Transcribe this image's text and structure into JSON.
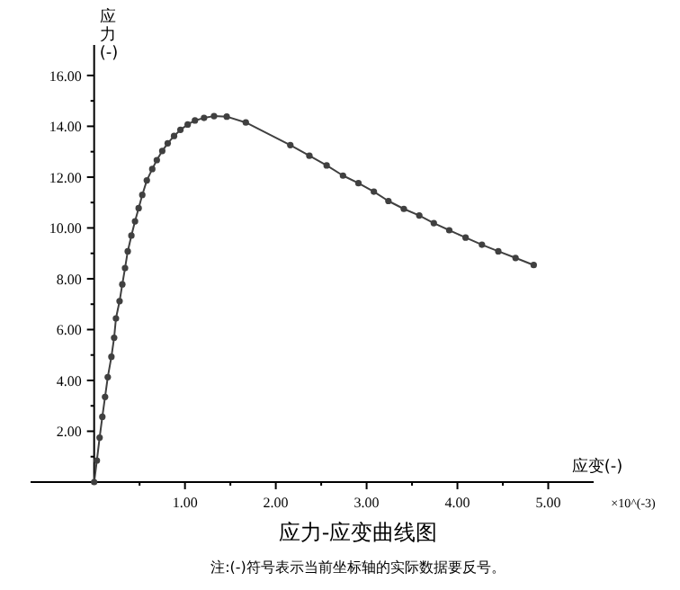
{
  "chart_data": {
    "type": "line",
    "title": "应力-应变曲线图",
    "xlabel": "应变(-)",
    "ylabel": "应力(-)",
    "annotations": [
      "×10^(-3)",
      "注:(-)符号表示当前坐标轴的实际数据要反号。"
    ],
    "x": [
      0,
      0.03,
      0.06,
      0.09,
      0.12,
      0.15,
      0.19,
      0.22,
      0.24,
      0.28,
      0.31,
      0.34,
      0.37,
      0.41,
      0.45,
      0.49,
      0.53,
      0.58,
      0.64,
      0.69,
      0.75,
      0.81,
      0.88,
      0.95,
      1.03,
      1.11,
      1.21,
      1.32,
      1.46,
      1.67,
      2.16,
      2.37,
      2.56,
      2.74,
      2.91,
      3.08,
      3.24,
      3.41,
      3.58,
      3.74,
      3.91,
      4.09,
      4.27,
      4.45,
      4.64,
      4.84
    ],
    "series": [
      {
        "color": "#404040",
        "values": [
          0,
          0.85,
          1.75,
          2.57,
          3.35,
          4.13,
          4.93,
          5.68,
          6.44,
          7.12,
          7.78,
          8.42,
          9.08,
          9.7,
          10.26,
          10.78,
          11.3,
          11.87,
          12.32,
          12.67,
          13.03,
          13.33,
          13.62,
          13.86,
          14.07,
          14.23,
          14.33,
          14.4,
          14.38,
          14.15,
          13.26,
          12.84,
          12.46,
          12.06,
          11.76,
          11.43,
          11.06,
          10.75,
          10.49,
          10.19,
          9.91,
          9.62,
          9.34,
          9.08,
          8.82,
          8.54
        ]
      }
    ],
    "xlim": [
      -0.7,
      5.5
    ],
    "ylim": [
      0,
      17.2
    ],
    "xticks": [
      {
        "value": 0.5,
        "label": null
      },
      {
        "value": 1,
        "label": "1.00"
      },
      {
        "value": 1.5,
        "label": null
      },
      {
        "value": 2,
        "label": "2.00"
      },
      {
        "value": 2.5,
        "label": null
      },
      {
        "value": 3,
        "label": "3.00"
      },
      {
        "value": 3.5,
        "label": null
      },
      {
        "value": 4,
        "label": "4.00"
      },
      {
        "value": 4.5,
        "label": null
      },
      {
        "value": 5,
        "label": "5.00"
      }
    ],
    "yticks": [
      {
        "value": 1,
        "label": null
      },
      {
        "value": 2,
        "label": "2.00"
      },
      {
        "value": 3,
        "label": null
      },
      {
        "value": 4,
        "label": "4.00"
      },
      {
        "value": 5,
        "label": null
      },
      {
        "value": 6,
        "label": "6.00"
      },
      {
        "value": 7,
        "label": null
      },
      {
        "value": 8,
        "label": "8.00"
      },
      {
        "value": 9,
        "label": null
      },
      {
        "value": 10,
        "label": "10.00"
      },
      {
        "value": 11,
        "label": null
      },
      {
        "value": 12,
        "label": "12.00"
      },
      {
        "value": 13,
        "label": null
      },
      {
        "value": 14,
        "label": "14.00"
      },
      {
        "value": 15,
        "label": null
      },
      {
        "value": 16,
        "label": "16.00"
      }
    ],
    "marker": "circle",
    "line_style": "solid",
    "grid": false
  }
}
